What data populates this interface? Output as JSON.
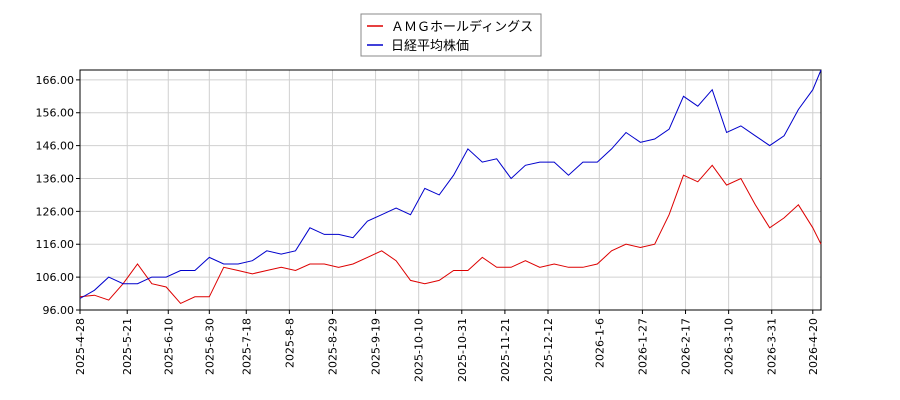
{
  "chart_data": {
    "type": "line",
    "x": [
      "2025-4-28",
      "2025-5-5",
      "2025-5-12",
      "2025-5-19",
      "2025-5-26",
      "2025-6-2",
      "2025-6-9",
      "2025-6-16",
      "2025-6-23",
      "2025-6-30",
      "2025-7-7",
      "2025-7-14",
      "2025-7-21",
      "2025-7-28",
      "2025-8-4",
      "2025-8-11",
      "2025-8-18",
      "2025-8-25",
      "2025-9-1",
      "2025-9-8",
      "2025-9-15",
      "2025-9-22",
      "2025-9-29",
      "2025-10-6",
      "2025-10-13",
      "2025-10-20",
      "2025-10-27",
      "2025-11-3",
      "2025-11-10",
      "2025-11-17",
      "2025-11-24",
      "2025-12-1",
      "2025-12-8",
      "2025-12-15",
      "2025-12-22",
      "2025-12-29",
      "2026-1-5",
      "2026-1-12",
      "2026-1-19",
      "2026-1-26",
      "2026-2-2",
      "2026-2-9",
      "2026-2-16",
      "2026-2-23",
      "2026-3-2",
      "2026-3-9",
      "2026-3-16",
      "2026-3-23",
      "2026-3-30",
      "2026-4-6",
      "2026-4-13",
      "2026-4-20",
      "2026-4-24"
    ],
    "series": [
      {
        "name": "ＡＭＧホールディングス",
        "color": "#dd0000",
        "values": [
          100,
          100.5,
          99,
          104,
          110,
          104,
          103,
          98,
          100,
          100,
          109,
          108,
          107,
          108,
          109,
          108,
          110,
          110,
          109,
          110,
          112,
          114,
          111,
          105,
          104,
          105,
          108,
          108,
          112,
          109,
          109,
          111,
          109,
          110,
          109,
          109,
          110,
          114,
          116,
          115,
          116,
          125,
          137,
          135,
          140,
          134,
          136,
          128,
          121,
          124,
          128,
          121,
          116
        ]
      },
      {
        "name": "日経平均株価",
        "color": "#0000cc",
        "values": [
          99.5,
          102,
          106,
          104,
          104,
          106,
          106,
          108,
          108,
          112,
          110,
          110,
          111,
          114,
          113,
          114,
          121,
          119,
          119,
          118,
          123,
          125,
          127,
          125,
          133,
          131,
          137,
          145,
          141,
          142,
          136,
          140,
          141,
          141,
          137,
          141,
          141,
          145,
          150,
          147,
          148,
          151,
          161,
          158,
          163,
          150,
          152,
          149,
          146,
          149,
          157,
          163,
          169
        ]
      }
    ],
    "xlim": [
      "2025-4-28",
      "2026-4-24"
    ],
    "xticks": [
      "2025-4-28",
      "2025-5-21",
      "2025-6-10",
      "2025-6-30",
      "2025-7-18",
      "2025-8-8",
      "2025-8-29",
      "2025-9-19",
      "2025-10-10",
      "2025-10-31",
      "2025-11-21",
      "2025-12-12",
      "2026-1-6",
      "2026-1-27",
      "2026-2-17",
      "2026-3-10",
      "2026-3-31",
      "2026-4-20"
    ],
    "ylim": [
      96,
      169
    ],
    "yticks": [
      {
        "value": 96,
        "label": "96.00"
      },
      {
        "value": 106,
        "label": "106.00"
      },
      {
        "value": 116,
        "label": "116.00"
      },
      {
        "value": 126,
        "label": "126.00"
      },
      {
        "value": 136,
        "label": "136.00"
      },
      {
        "value": 146,
        "label": "146.00"
      },
      {
        "value": 156,
        "label": "156.00"
      },
      {
        "value": 166,
        "label": "166.00"
      }
    ],
    "grid": true
  }
}
